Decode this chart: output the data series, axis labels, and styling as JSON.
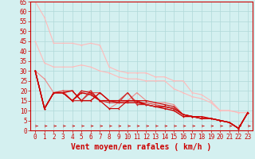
{
  "bg_color": "#d4f0f0",
  "grid_color": "#b0d8d8",
  "line_color_dark": "#cc0000",
  "xlabel": "Vent moyen/en rafales ( km/h )",
  "xlim": [
    -0.5,
    23.5
  ],
  "ylim": [
    0,
    65
  ],
  "xticks": [
    0,
    1,
    2,
    3,
    4,
    5,
    6,
    7,
    8,
    9,
    10,
    11,
    12,
    13,
    14,
    15,
    16,
    17,
    18,
    19,
    20,
    21,
    22,
    23
  ],
  "yticks": [
    0,
    5,
    10,
    15,
    20,
    25,
    30,
    35,
    40,
    45,
    50,
    55,
    60,
    65
  ],
  "series": [
    {
      "color": "#ffbbbb",
      "lw": 0.8,
      "pts": [
        [
          0,
          65
        ],
        [
          1,
          57
        ],
        [
          2,
          44
        ],
        [
          3,
          44
        ],
        [
          4,
          44
        ],
        [
          5,
          43
        ],
        [
          6,
          44
        ],
        [
          7,
          43
        ],
        [
          8,
          32
        ],
        [
          9,
          30
        ],
        [
          10,
          29
        ],
        [
          11,
          29
        ],
        [
          12,
          29
        ],
        [
          13,
          27
        ],
        [
          14,
          27
        ],
        [
          15,
          25
        ],
        [
          16,
          25
        ],
        [
          17,
          19
        ],
        [
          18,
          18
        ],
        [
          19,
          15
        ],
        [
          20,
          10
        ],
        [
          21,
          10
        ],
        [
          22,
          9
        ],
        [
          23,
          9
        ]
      ]
    },
    {
      "color": "#ffbbbb",
      "lw": 0.8,
      "pts": [
        [
          0,
          45
        ],
        [
          1,
          34
        ],
        [
          2,
          32
        ],
        [
          3,
          32
        ],
        [
          4,
          32
        ],
        [
          5,
          33
        ],
        [
          6,
          32
        ],
        [
          7,
          30
        ],
        [
          8,
          29
        ],
        [
          9,
          27
        ],
        [
          10,
          26
        ],
        [
          11,
          26
        ],
        [
          12,
          25
        ],
        [
          13,
          25
        ],
        [
          14,
          25
        ],
        [
          15,
          21
        ],
        [
          16,
          19
        ],
        [
          17,
          17
        ],
        [
          18,
          16
        ],
        [
          19,
          14
        ],
        [
          20,
          10
        ],
        [
          21,
          10
        ],
        [
          22,
          9
        ],
        [
          23,
          9
        ]
      ]
    },
    {
      "color": "#ee8888",
      "lw": 0.8,
      "pts": [
        [
          0,
          30
        ],
        [
          1,
          26
        ],
        [
          2,
          19
        ],
        [
          3,
          20
        ],
        [
          4,
          15
        ],
        [
          5,
          19
        ],
        [
          6,
          20
        ],
        [
          7,
          15
        ],
        [
          8,
          11
        ],
        [
          9,
          14
        ],
        [
          10,
          15
        ],
        [
          11,
          19
        ],
        [
          12,
          15
        ],
        [
          13,
          14
        ],
        [
          14,
          14
        ],
        [
          15,
          13
        ],
        [
          16,
          8
        ],
        [
          17,
          7
        ],
        [
          18,
          7
        ],
        [
          19,
          6
        ],
        [
          20,
          5
        ],
        [
          21,
          4
        ],
        [
          22,
          1
        ],
        [
          23,
          9
        ]
      ]
    },
    {
      "color": "#dd4444",
      "lw": 0.8,
      "pts": [
        [
          0,
          30
        ],
        [
          1,
          11
        ],
        [
          2,
          19
        ],
        [
          3,
          20
        ],
        [
          4,
          20
        ],
        [
          5,
          15
        ],
        [
          6,
          19
        ],
        [
          7,
          19
        ],
        [
          8,
          15
        ],
        [
          9,
          15
        ],
        [
          10,
          19
        ],
        [
          11,
          14
        ],
        [
          12,
          14
        ],
        [
          13,
          13
        ],
        [
          14,
          12
        ],
        [
          15,
          11
        ],
        [
          16,
          8
        ],
        [
          17,
          7
        ],
        [
          18,
          6
        ],
        [
          19,
          6
        ],
        [
          20,
          5
        ],
        [
          21,
          4
        ],
        [
          22,
          1
        ],
        [
          23,
          9
        ]
      ]
    },
    {
      "color": "#cc0000",
      "lw": 1.0,
      "pts": [
        [
          0,
          30
        ],
        [
          1,
          11
        ],
        [
          2,
          19
        ],
        [
          3,
          19
        ],
        [
          4,
          15
        ],
        [
          5,
          19
        ],
        [
          6,
          18
        ],
        [
          7,
          15
        ],
        [
          8,
          15
        ],
        [
          9,
          15
        ],
        [
          10,
          15
        ],
        [
          11,
          15
        ],
        [
          12,
          13
        ],
        [
          13,
          12
        ],
        [
          14,
          11
        ],
        [
          15,
          10
        ],
        [
          16,
          7
        ],
        [
          17,
          7
        ],
        [
          18,
          6
        ],
        [
          19,
          6
        ],
        [
          20,
          5
        ],
        [
          21,
          4
        ],
        [
          22,
          1
        ],
        [
          23,
          9
        ]
      ]
    },
    {
      "color": "#cc0000",
      "lw": 1.0,
      "pts": [
        [
          0,
          30
        ],
        [
          1,
          11
        ],
        [
          2,
          19
        ],
        [
          3,
          19
        ],
        [
          4,
          20
        ],
        [
          5,
          15
        ],
        [
          6,
          15
        ],
        [
          7,
          19
        ],
        [
          8,
          15
        ],
        [
          9,
          14
        ],
        [
          10,
          14
        ],
        [
          11,
          14
        ],
        [
          12,
          13
        ],
        [
          13,
          12
        ],
        [
          14,
          12
        ],
        [
          15,
          11
        ],
        [
          16,
          8
        ],
        [
          17,
          7
        ],
        [
          18,
          6
        ],
        [
          19,
          6
        ],
        [
          20,
          5
        ],
        [
          21,
          4
        ],
        [
          22,
          1
        ],
        [
          23,
          9
        ]
      ]
    },
    {
      "color": "#cc2222",
      "lw": 0.8,
      "pts": [
        [
          0,
          30
        ],
        [
          1,
          11
        ],
        [
          2,
          19
        ],
        [
          3,
          19
        ],
        [
          4,
          15
        ],
        [
          5,
          15
        ],
        [
          6,
          20
        ],
        [
          7,
          15
        ],
        [
          8,
          14
        ],
        [
          9,
          14
        ],
        [
          10,
          19
        ],
        [
          11,
          13
        ],
        [
          12,
          13
        ],
        [
          13,
          12
        ],
        [
          14,
          12
        ],
        [
          15,
          11
        ],
        [
          16,
          8
        ],
        [
          17,
          7
        ],
        [
          18,
          6
        ],
        [
          19,
          6
        ],
        [
          20,
          5
        ],
        [
          21,
          4
        ],
        [
          22,
          1
        ],
        [
          23,
          9
        ]
      ]
    },
    {
      "color": "#cc0000",
      "lw": 0.8,
      "pts": [
        [
          0,
          30
        ],
        [
          1,
          11
        ],
        [
          2,
          19
        ],
        [
          3,
          19
        ],
        [
          4,
          15
        ],
        [
          5,
          20
        ],
        [
          6,
          19
        ],
        [
          7,
          15
        ],
        [
          8,
          11
        ],
        [
          9,
          11
        ],
        [
          10,
          15
        ],
        [
          11,
          15
        ],
        [
          12,
          15
        ],
        [
          13,
          14
        ],
        [
          14,
          13
        ],
        [
          15,
          12
        ],
        [
          16,
          8
        ],
        [
          17,
          7
        ],
        [
          18,
          7
        ],
        [
          19,
          6
        ],
        [
          20,
          5
        ],
        [
          21,
          4
        ],
        [
          22,
          1
        ],
        [
          23,
          9
        ]
      ]
    }
  ],
  "tick_fontsize": 5.5,
  "xlabel_fontsize": 7
}
